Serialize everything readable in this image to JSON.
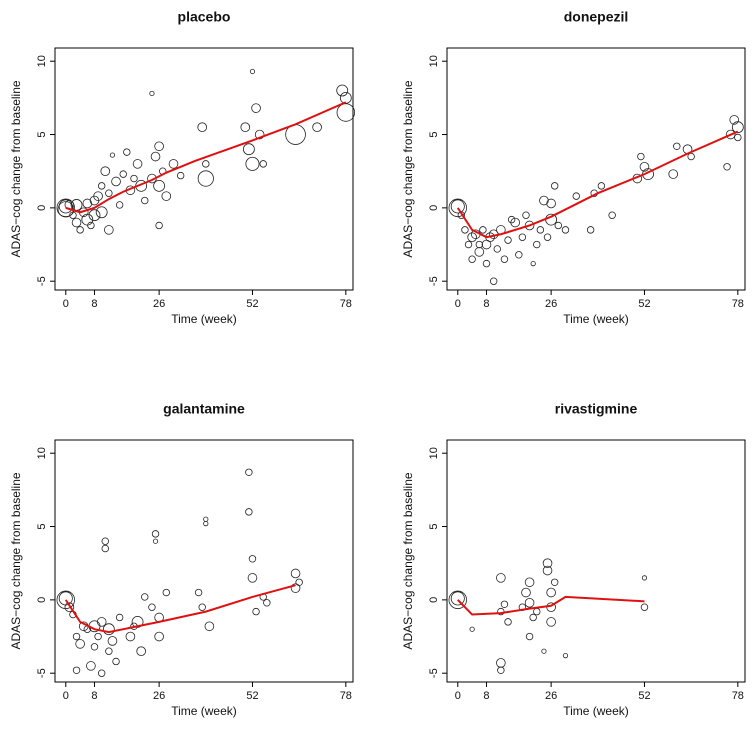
{
  "chart_data": [
    {
      "type": "scatter",
      "title": "placebo",
      "xlabel": "Time (week)",
      "ylabel": "ADAS−cog change from baseline",
      "xlim": [
        -3,
        80
      ],
      "ylim": [
        -5.6,
        10.9
      ],
      "xticks": [
        0,
        8,
        26,
        52,
        78
      ],
      "yticks": [
        -5,
        0,
        5,
        10
      ],
      "point_color": "#222222",
      "points": {
        "x": [
          0,
          0,
          0,
          1,
          2,
          3,
          3,
          4,
          5,
          6,
          6,
          7,
          8,
          8,
          9,
          10,
          10,
          11,
          12,
          12,
          13,
          14,
          15,
          16,
          17,
          18,
          19,
          20,
          21,
          22,
          24,
          24,
          25,
          26,
          26,
          26,
          27,
          28,
          30,
          32,
          38,
          39,
          39,
          50,
          51,
          52,
          52,
          53,
          54,
          55,
          64,
          70,
          77,
          78,
          78
        ],
        "y": [
          0,
          0.1,
          -0.1,
          0.2,
          -0.5,
          -1,
          0.2,
          -1.5,
          -0.3,
          -0.8,
          0.3,
          -1.2,
          0.5,
          -0.5,
          0.8,
          1.5,
          -0.3,
          2.5,
          1,
          -1.5,
          3.6,
          1.8,
          0.2,
          2.3,
          3.8,
          1.2,
          2,
          3,
          1.5,
          0.5,
          7.8,
          2,
          3.5,
          1.5,
          4.2,
          -1.2,
          2.5,
          0.8,
          3,
          2.2,
          5.5,
          2,
          3,
          5.5,
          4,
          9.3,
          3,
          6.8,
          5,
          3,
          5,
          5.5,
          8,
          6.5,
          7.5
        ],
        "size": [
          8,
          6,
          7,
          4,
          3,
          4,
          5,
          3,
          4,
          5,
          4,
          3,
          4,
          5,
          4,
          3,
          5,
          4,
          3,
          4,
          2,
          4,
          3,
          3,
          3,
          4,
          3,
          4,
          5,
          3,
          2,
          4,
          4,
          5,
          4,
          3,
          3,
          4,
          4,
          3,
          4,
          7,
          3,
          4,
          5,
          2,
          6,
          4,
          4,
          3,
          9,
          4,
          5,
          8,
          5
        ]
      },
      "line": {
        "x": [
          0,
          4,
          8,
          12,
          16,
          20,
          24,
          28,
          36,
          52,
          64,
          78
        ],
        "y": [
          0,
          -0.3,
          0,
          0.6,
          1.1,
          1.5,
          1.9,
          2.4,
          3.2,
          4.6,
          5.7,
          7.2
        ],
        "color": "#e01010"
      }
    },
    {
      "type": "scatter",
      "title": "donepezil",
      "xlabel": "Time (week)",
      "ylabel": "ADAS−cog change from baseline",
      "xlim": [
        -3,
        80
      ],
      "ylim": [
        -5.6,
        10.9
      ],
      "xticks": [
        0,
        8,
        26,
        52,
        78
      ],
      "yticks": [
        -5,
        0,
        5,
        10
      ],
      "point_color": "#222222",
      "points": {
        "x": [
          0,
          0,
          1,
          2,
          3,
          4,
          4,
          5,
          6,
          6,
          7,
          8,
          8,
          9,
          10,
          10,
          11,
          12,
          13,
          14,
          15,
          16,
          17,
          18,
          19,
          20,
          21,
          22,
          23,
          24,
          25,
          26,
          26,
          27,
          28,
          30,
          33,
          37,
          38,
          40,
          43,
          50,
          51,
          52,
          53,
          60,
          61,
          64,
          65,
          75,
          76,
          77,
          78,
          78
        ],
        "y": [
          0,
          0.1,
          -0.5,
          -1.5,
          -2.5,
          -3.5,
          -2,
          -1.8,
          -2.5,
          -3,
          -1.5,
          -2.5,
          -3.8,
          -2,
          -5,
          -1.8,
          -2.8,
          -1.5,
          -3.5,
          -2.2,
          -0.8,
          -1,
          -3.2,
          -2,
          -0.5,
          -1.2,
          -3.8,
          -2.5,
          -1.5,
          0.5,
          -2,
          0.3,
          -0.8,
          1.5,
          -1.2,
          -1.5,
          0.8,
          -1.5,
          1,
          1.5,
          -0.5,
          2,
          3.5,
          2.8,
          2.3,
          2.3,
          4.2,
          4,
          3.5,
          2.8,
          5,
          6,
          5.5,
          4.8
        ],
        "size": [
          8,
          6,
          3,
          3,
          3,
          3,
          4,
          4,
          3,
          4,
          3,
          4,
          3,
          4,
          3,
          4,
          3,
          4,
          3,
          3,
          3,
          4,
          3,
          3,
          3,
          4,
          2,
          3,
          3,
          4,
          3,
          4,
          5,
          3,
          3,
          3,
          3,
          3,
          3,
          3,
          3,
          4,
          3,
          4,
          5,
          4,
          3,
          4,
          3,
          3,
          4,
          4,
          5,
          3
        ]
      },
      "line": {
        "x": [
          0,
          4,
          8,
          12,
          20,
          26,
          39,
          52,
          64,
          78
        ],
        "y": [
          0,
          -1.5,
          -2,
          -1.8,
          -1.2,
          -0.6,
          1,
          2.3,
          3.7,
          5.2
        ],
        "color": "#e01010"
      }
    },
    {
      "type": "scatter",
      "title": "galantamine",
      "xlabel": "Time (week)",
      "ylabel": "ADAS−cog change from baseline",
      "xlim": [
        -3,
        80
      ],
      "ylim": [
        -5.6,
        10.9
      ],
      "xticks": [
        0,
        8,
        26,
        52,
        78
      ],
      "yticks": [
        -5,
        0,
        5,
        10
      ],
      "point_color": "#222222",
      "points": {
        "x": [
          0,
          0,
          1,
          2,
          3,
          3,
          4,
          5,
          6,
          7,
          8,
          8,
          9,
          10,
          10,
          11,
          11,
          12,
          12,
          13,
          14,
          15,
          18,
          19,
          20,
          21,
          22,
          24,
          25,
          25,
          26,
          26,
          28,
          37,
          38,
          39,
          39,
          40,
          51,
          51,
          52,
          52,
          53,
          55,
          56,
          64,
          64,
          65
        ],
        "y": [
          0,
          0.1,
          -0.5,
          -1,
          -2.5,
          -4.8,
          -3,
          -1.8,
          -2,
          -4.5,
          -1.8,
          -3.2,
          -2.5,
          -5,
          -1.5,
          3.5,
          4,
          -2,
          -3.5,
          -2.8,
          -4.2,
          -1.2,
          -2.5,
          -1.8,
          -1.5,
          -3.5,
          0.2,
          -0.5,
          4.5,
          4,
          -1.2,
          -2.5,
          0.5,
          0.5,
          -0.5,
          5.5,
          5.2,
          -1.8,
          8.7,
          6,
          2.8,
          1.5,
          -0.8,
          0.2,
          -0.2,
          1.8,
          0.8,
          1.2
        ],
        "size": [
          8,
          6,
          4,
          3,
          3,
          3,
          4,
          4,
          3,
          4,
          5,
          3,
          3,
          3,
          4,
          3,
          3,
          5,
          3,
          4,
          3,
          3,
          4,
          3,
          5,
          4,
          3,
          3,
          3,
          2,
          4,
          4,
          3,
          3,
          3,
          2,
          2,
          4,
          3,
          3,
          3,
          4,
          3,
          3,
          3,
          4,
          4,
          3
        ]
      },
      "line": {
        "x": [
          0,
          4,
          8,
          12,
          20,
          26,
          39,
          52,
          64
        ],
        "y": [
          0,
          -1.5,
          -2,
          -2.2,
          -1.8,
          -1.5,
          -0.8,
          0.2,
          1
        ],
        "color": "#e01010"
      }
    },
    {
      "type": "scatter",
      "title": "rivastigmine",
      "xlabel": "Time (week)",
      "ylabel": "ADAS−cog change from baseline",
      "xlim": [
        -3,
        80
      ],
      "ylim": [
        -5.6,
        10.9
      ],
      "xticks": [
        0,
        8,
        26,
        52,
        78
      ],
      "yticks": [
        -5,
        0,
        5,
        10
      ],
      "point_color": "#222222",
      "points": {
        "x": [
          0,
          0,
          4,
          12,
          12,
          12,
          12,
          13,
          14,
          18,
          19,
          20,
          20,
          20,
          21,
          22,
          24,
          25,
          25,
          26,
          26,
          26,
          27,
          30,
          52,
          52
        ],
        "y": [
          0,
          0.1,
          -2,
          -0.8,
          1.5,
          -4.3,
          -4.8,
          -0.3,
          -1.5,
          -0.5,
          0.5,
          -2.5,
          -0.2,
          1.2,
          -1.2,
          -0.8,
          -3.5,
          2.5,
          2,
          0.5,
          -0.5,
          -1.5,
          1.2,
          -3.8,
          1.5,
          -0.5
        ],
        "size": [
          8,
          6,
          2,
          3,
          4,
          4,
          3,
          3,
          3,
          3,
          4,
          3,
          4,
          4,
          3,
          3,
          2,
          4,
          4,
          4,
          4,
          4,
          3,
          2,
          2,
          3
        ]
      },
      "line": {
        "x": [
          0,
          4,
          12,
          20,
          26,
          30,
          52
        ],
        "y": [
          0,
          -1,
          -0.9,
          -0.6,
          -0.4,
          0.2,
          -0.1
        ],
        "color": "#e01010"
      }
    }
  ]
}
